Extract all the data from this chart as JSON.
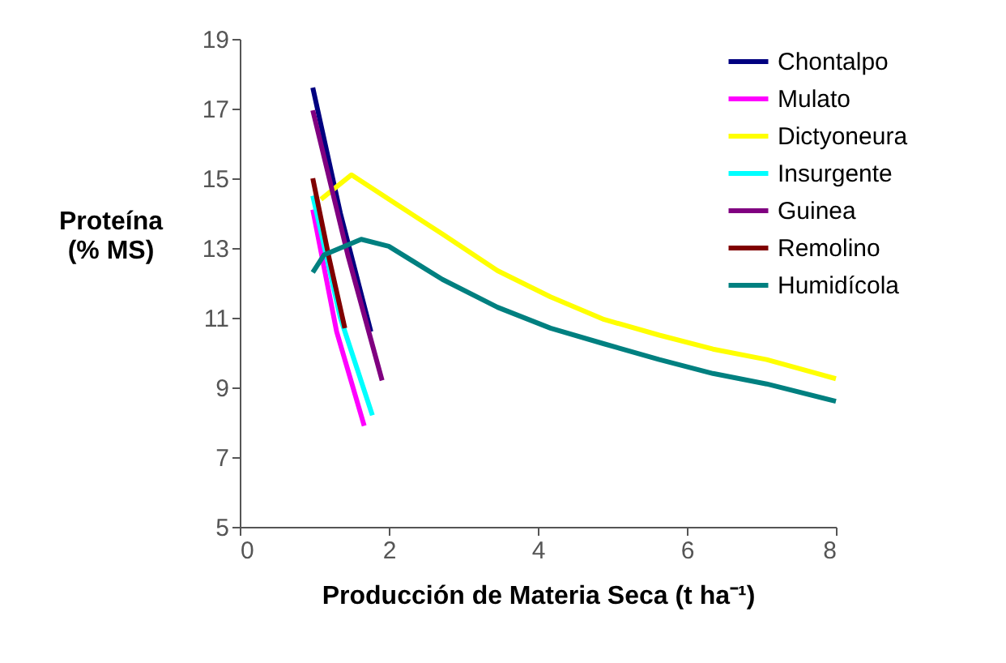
{
  "chart_data": {
    "type": "line",
    "xlabel": "Producción de Materia Seca (t ha⁻¹)",
    "ylabel": "Proteína (% MS)",
    "xlim": [
      0,
      8
    ],
    "ylim": [
      5,
      19
    ],
    "xticks": [
      0,
      2,
      4,
      6,
      8
    ],
    "yticks": [
      5,
      7,
      9,
      11,
      13,
      15,
      17,
      19
    ],
    "grid": false,
    "legend": "top right",
    "marker": "none",
    "line_style": "solid",
    "series": [
      {
        "name": "Chontalpo",
        "color": "#000080",
        "x": [
          0.98,
          1.35,
          1.76
        ],
        "values": [
          17.6,
          14.0,
          10.6
        ]
      },
      {
        "name": "Mulato",
        "color": "#ff00ff",
        "x": [
          0.98,
          1.3,
          1.67
        ],
        "values": [
          14.1,
          10.6,
          7.9
        ]
      },
      {
        "name": "Dictyoneura",
        "color": "#ffff00",
        "x": [
          1.09,
          1.5,
          2.0,
          2.72,
          3.46,
          4.17,
          4.89,
          5.63,
          6.35,
          7.07,
          8.0
        ],
        "values": [
          14.4,
          15.1,
          14.4,
          13.4,
          12.35,
          11.6,
          10.95,
          10.5,
          10.1,
          9.8,
          9.25
        ]
      },
      {
        "name": "Insurgente",
        "color": "#00ffff",
        "x": [
          0.98,
          1.35,
          1.78
        ],
        "values": [
          14.5,
          11.0,
          8.2
        ]
      },
      {
        "name": "Guinea",
        "color": "#800080",
        "x": [
          0.98,
          1.45,
          1.91
        ],
        "values": [
          16.95,
          12.8,
          9.2
        ]
      },
      {
        "name": "Remolino",
        "color": "#800000",
        "x": [
          0.98,
          1.2,
          1.41
        ],
        "values": [
          15.0,
          12.7,
          10.7
        ]
      },
      {
        "name": "Humidícola",
        "color": "#008080",
        "x": [
          0.98,
          1.13,
          1.63,
          2.0,
          2.72,
          3.46,
          4.17,
          4.89,
          5.63,
          6.35,
          7.07,
          8.0
        ],
        "values": [
          12.3,
          12.8,
          13.25,
          13.05,
          12.1,
          11.3,
          10.7,
          10.25,
          9.8,
          9.4,
          9.1,
          8.6
        ]
      }
    ]
  }
}
